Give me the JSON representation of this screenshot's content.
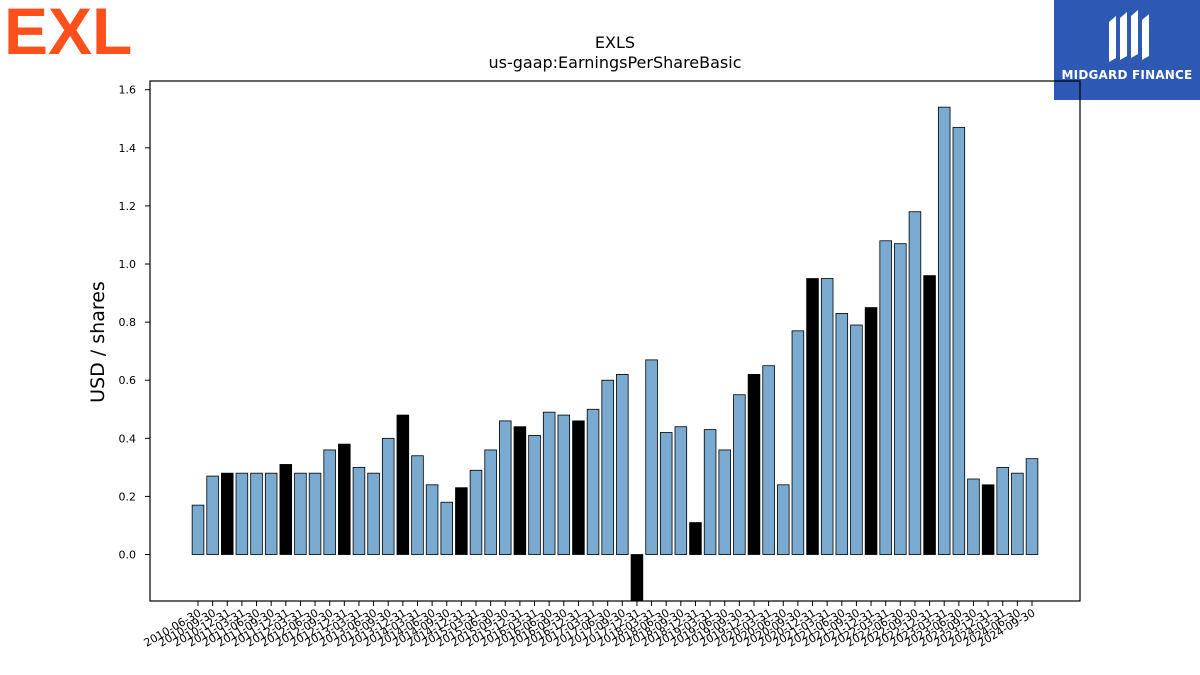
{
  "logos": {
    "left_text": "EXL",
    "left_color": "#ff4f1a",
    "right_text": "MIDGARD FINANCE",
    "right_bg": "#2d59b5"
  },
  "colors": {
    "bar_default": "#7aaad0",
    "bar_highlight": "#000000",
    "bar_edge": "#000000"
  },
  "chart_data": {
    "type": "bar",
    "title": "EXLS",
    "subtitle": "us-gaap:EarningsPerShareBasic",
    "xlabel": "",
    "ylabel": "USD / shares",
    "ylim": [
      -0.16,
      1.63
    ],
    "yticks": [
      "0.0",
      "0.2",
      "0.4",
      "0.6",
      "0.8",
      "1.0",
      "1.2",
      "1.4",
      "1.6"
    ],
    "grid": false,
    "categories": [
      "2010-06-30",
      "2010-09-30",
      "2010-12-31",
      "2011-03-31",
      "2011-06-30",
      "2011-09-30",
      "2011-12-31",
      "2012-03-31",
      "2012-06-30",
      "2012-09-30",
      "2012-12-31",
      "2013-03-31",
      "2013-06-30",
      "2013-09-30",
      "2013-12-31",
      "2014-03-31",
      "2014-06-30",
      "2014-09-30",
      "2014-12-31",
      "2015-03-31",
      "2015-06-30",
      "2015-09-30",
      "2015-12-31",
      "2016-03-31",
      "2016-06-30",
      "2016-09-30",
      "2016-12-31",
      "2017-03-31",
      "2017-06-30",
      "2017-09-30",
      "2017-12-31",
      "2018-03-31",
      "2018-06-30",
      "2018-09-30",
      "2018-12-31",
      "2019-03-31",
      "2019-06-30",
      "2019-09-30",
      "2019-12-31",
      "2020-03-31",
      "2020-06-30",
      "2020-09-30",
      "2020-12-31",
      "2021-03-31",
      "2021-06-30",
      "2021-09-30",
      "2021-12-31",
      "2022-03-31",
      "2022-06-30",
      "2022-09-30",
      "2022-12-31",
      "2023-03-31",
      "2023-06-30",
      "2023-09-30",
      "2023-12-31",
      "2024-03-31",
      "2024-06-30",
      "2024-09-30"
    ],
    "values": [
      0.17,
      0.27,
      0.28,
      0.28,
      0.28,
      0.28,
      0.31,
      0.28,
      0.28,
      0.36,
      0.38,
      0.3,
      0.28,
      0.4,
      0.48,
      0.34,
      0.24,
      0.18,
      0.23,
      0.29,
      0.36,
      0.46,
      0.44,
      0.41,
      0.49,
      0.48,
      0.46,
      0.5,
      0.6,
      0.62,
      -0.18,
      0.67,
      0.42,
      0.44,
      0.11,
      0.43,
      0.36,
      0.55,
      0.62,
      0.65,
      0.24,
      0.77,
      0.95,
      0.95,
      0.83,
      0.79,
      0.85,
      1.08,
      1.07,
      1.18,
      0.96,
      1.54,
      1.47,
      0.26,
      0.24,
      0.3,
      0.28,
      0.33
    ],
    "highlight": [
      false,
      false,
      true,
      false,
      false,
      false,
      true,
      false,
      false,
      false,
      true,
      false,
      false,
      false,
      true,
      false,
      false,
      false,
      true,
      false,
      false,
      false,
      true,
      false,
      false,
      false,
      true,
      false,
      false,
      false,
      true,
      false,
      false,
      false,
      true,
      false,
      false,
      false,
      true,
      false,
      false,
      false,
      true,
      false,
      false,
      false,
      true,
      false,
      false,
      false,
      true,
      false,
      false,
      false,
      true,
      false,
      false,
      false
    ]
  }
}
